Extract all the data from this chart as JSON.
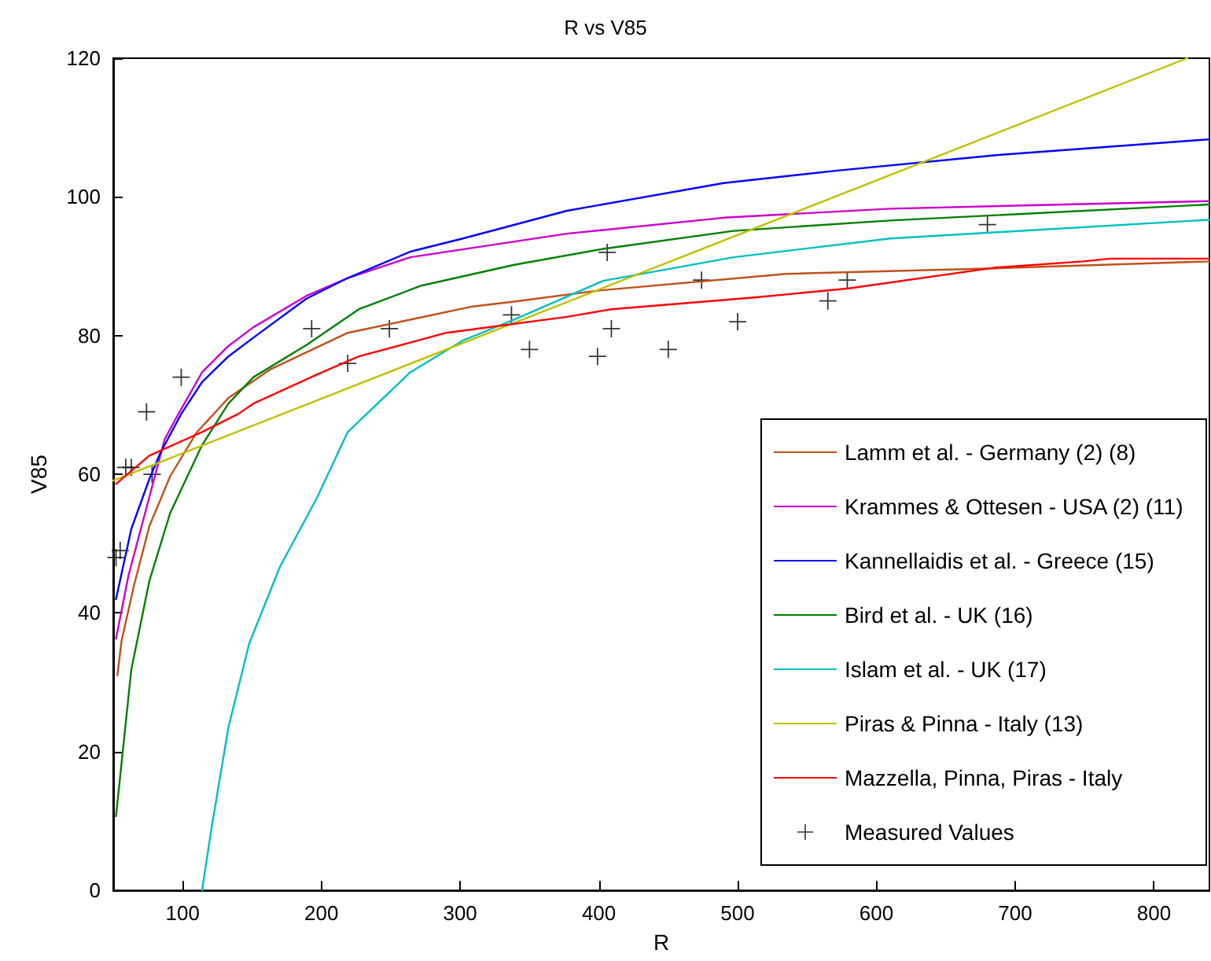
{
  "chart_data": {
    "type": "line",
    "title": "R vs V85",
    "xlabel": "R",
    "ylabel": "V85",
    "xlim": [
      50,
      840
    ],
    "xticks": [
      100,
      200,
      300,
      400,
      500,
      600,
      700,
      800
    ],
    "ylim": [
      0,
      120
    ],
    "yticks": [
      0,
      20,
      40,
      60,
      80,
      100,
      120
    ],
    "grid": false,
    "legend": "bottom right",
    "marker": "none",
    "line_style": "solid",
    "series": [
      {
        "name": "Lamm et al. - Germany (2) (8)",
        "color": "#c0501a",
        "x": [
          53,
          56,
          65,
          76,
          91,
          110,
          133,
          163,
          219,
          264,
          309,
          339,
          400,
          535,
          685,
          840
        ],
        "values": [
          31,
          36,
          44,
          52.5,
          59.7,
          66,
          71,
          75.1,
          80.4,
          82.3,
          84.2,
          84.9,
          86.5,
          88.9,
          89.7,
          90.7
        ]
      },
      {
        "name": "Krammes & Ottesen - USA (2) (11)",
        "color": "#cc00cc",
        "x": [
          52,
          61,
          87,
          95,
          114,
          133,
          151,
          189,
          219,
          264,
          377,
          490,
          610,
          840
        ],
        "values": [
          36.3,
          45.4,
          65,
          68,
          74.7,
          78.5,
          81.2,
          85.7,
          88.3,
          91.3,
          94.7,
          97,
          98.3,
          99.4
        ]
      },
      {
        "name": "Kannellaidis et al. - Greece (15)",
        "color": "#0000ff",
        "x": [
          52,
          63,
          76,
          84,
          99,
          114,
          133,
          151,
          189,
          219,
          264,
          302,
          377,
          490,
          572,
          685,
          840
        ],
        "values": [
          42,
          52.1,
          59.3,
          63.1,
          68.7,
          73.3,
          77,
          79.7,
          85.3,
          88.3,
          92.1,
          94,
          98,
          102,
          103.8,
          106,
          108.3
        ]
      },
      {
        "name": "Bird et al. - UK (16)",
        "color": "#008000",
        "x": [
          52,
          63,
          76,
          91,
          114,
          133,
          151,
          189,
          227,
          272,
          339,
          403,
          497,
          610,
          840
        ],
        "values": [
          10.7,
          31.8,
          44.6,
          54.4,
          64.2,
          70.2,
          74,
          78.6,
          83.8,
          87.2,
          90.2,
          92.5,
          95.1,
          96.6,
          98.9
        ]
      },
      {
        "name": "Islam et al. - UK (17)",
        "color": "#00bfbf",
        "x": [
          114,
          121,
          133,
          148,
          170,
          197,
          219,
          264,
          302,
          339,
          403,
          497,
          610,
          840
        ],
        "values": [
          0,
          9.2,
          23.5,
          35.6,
          46.6,
          56.7,
          66.1,
          74.7,
          79.3,
          82.3,
          87.9,
          91.3,
          94,
          96.7
        ]
      },
      {
        "name": "Piras & Pinna - Italy (13)",
        "color": "#bfbf00",
        "x": [
          50,
          824
        ],
        "values": [
          59.1,
          120
        ]
      },
      {
        "name": "Mazzella, Pinna, Piras - Italy",
        "color": "#ff0000",
        "x": [
          52,
          76,
          114,
          140,
          151,
          197,
          227,
          290,
          377,
          409,
          512,
          580,
          685,
          749,
          769,
          840
        ],
        "values": [
          58.6,
          62.7,
          66.1,
          68.7,
          70.2,
          74.4,
          77,
          80.4,
          82.7,
          83.8,
          85.5,
          86.8,
          89.8,
          90.7,
          91.1,
          91.1
        ]
      },
      {
        "name": "Measured Values",
        "type": "scatter",
        "marker": "cross",
        "color": "#000000",
        "x": [
          52,
          55,
          59,
          63,
          74,
          78,
          99,
          193,
          219,
          249,
          337,
          350,
          399,
          406,
          409,
          450,
          474,
          500,
          565,
          579,
          680
        ],
        "values": [
          48,
          49,
          61,
          61,
          69,
          60,
          74,
          81,
          76,
          81,
          83,
          78,
          77,
          92,
          81,
          78,
          88,
          82,
          85,
          88,
          96
        ]
      }
    ]
  }
}
